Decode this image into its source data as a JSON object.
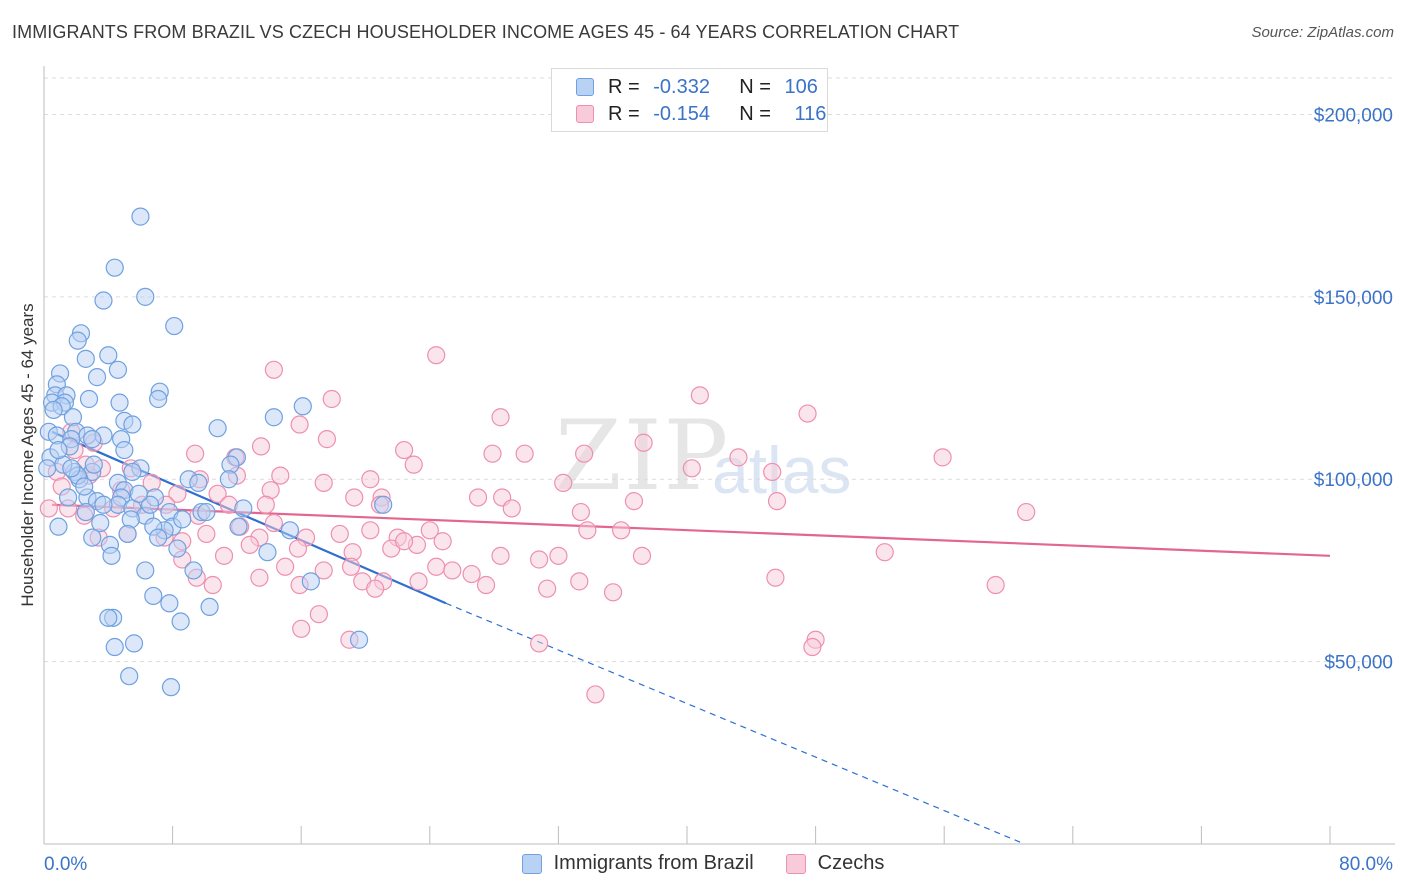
{
  "title": "IMMIGRANTS FROM BRAZIL VS CZECH HOUSEHOLDER INCOME AGES 45 - 64 YEARS CORRELATION CHART",
  "source": "Source: ZipAtlas.com",
  "watermark": {
    "zip": "ZIP",
    "atlas": "atlas"
  },
  "legend": {
    "brazil": {
      "r_label": "R = ",
      "r_value": "-0.332",
      "n_label": "N = ",
      "n_value": "106"
    },
    "czech": {
      "r_label": "R = ",
      "r_value": "-0.154",
      "n_label": "N = ",
      "n_value": "116"
    }
  },
  "bottom_legend": {
    "brazil": "Immigrants from Brazil",
    "czech": "Czechs"
  },
  "colors": {
    "brazil": "#6fa1e0",
    "brazil_fill": "#b9d2f3",
    "brazil_line": "#2f6fd0",
    "czech": "#ee8fb0",
    "czech_fill": "#f8cbda",
    "czech_line": "#e2668f",
    "axis_text": "#3b73c8"
  },
  "chart_data": {
    "type": "scatter",
    "title": "IMMIGRANTS FROM BRAZIL VS CZECH HOUSEHOLDER INCOME AGES 45 - 64 YEARS CORRELATION CHART",
    "xlabel": "",
    "ylabel": "Householder Income Ages 45 - 64 years",
    "xlim": [
      0,
      80
    ],
    "ylim": [
      0,
      210000
    ],
    "x_tick_labels": [
      "0.0%",
      "80.0%"
    ],
    "y_ticks": [
      50000,
      100000,
      150000,
      200000
    ],
    "y_tick_labels": [
      "$50,000",
      "$100,000",
      "$150,000",
      "$200,000"
    ],
    "series": [
      {
        "name": "Immigrants from Brazil",
        "trend": {
          "x0": 0.5,
          "y0": 113000,
          "x1": 25,
          "y1": 66000,
          "dash_x1": 61,
          "dash_y1": 0
        },
        "points": [
          [
            6.0,
            172000
          ],
          [
            4.4,
            158000
          ],
          [
            6.3,
            150000
          ],
          [
            3.7,
            149000
          ],
          [
            8.1,
            142000
          ],
          [
            2.3,
            140000
          ],
          [
            2.1,
            138000
          ],
          [
            4.0,
            134000
          ],
          [
            2.6,
            133000
          ],
          [
            1.0,
            129000
          ],
          [
            4.6,
            130000
          ],
          [
            3.3,
            128000
          ],
          [
            0.8,
            126000
          ],
          [
            7.2,
            124000
          ],
          [
            0.7,
            123000
          ],
          [
            1.4,
            123000
          ],
          [
            0.5,
            121000
          ],
          [
            2.8,
            122000
          ],
          [
            7.1,
            122000
          ],
          [
            4.7,
            121000
          ],
          [
            1.3,
            121000
          ],
          [
            1.1,
            120000
          ],
          [
            0.6,
            119000
          ],
          [
            16.1,
            120000
          ],
          [
            14.3,
            117000
          ],
          [
            1.8,
            117000
          ],
          [
            5.0,
            116000
          ],
          [
            5.5,
            115000
          ],
          [
            0.3,
            113000
          ],
          [
            2.0,
            113000
          ],
          [
            10.8,
            114000
          ],
          [
            0.8,
            112000
          ],
          [
            2.7,
            112000
          ],
          [
            3.7,
            112000
          ],
          [
            4.8,
            111000
          ],
          [
            1.7,
            111000
          ],
          [
            3.0,
            111000
          ],
          [
            1.6,
            109000
          ],
          [
            5.0,
            108000
          ],
          [
            0.4,
            106000
          ],
          [
            12.0,
            106000
          ],
          [
            11.6,
            104000
          ],
          [
            0.2,
            103000
          ],
          [
            6.0,
            103000
          ],
          [
            5.5,
            102000
          ],
          [
            3.0,
            102000
          ],
          [
            1.9,
            102000
          ],
          [
            2.2,
            100000
          ],
          [
            9.0,
            100000
          ],
          [
            11.5,
            100000
          ],
          [
            4.6,
            99000
          ],
          [
            5.0,
            97000
          ],
          [
            4.8,
            95000
          ],
          [
            6.9,
            95000
          ],
          [
            2.7,
            95000
          ],
          [
            1.5,
            95000
          ],
          [
            3.3,
            94000
          ],
          [
            4.6,
            93000
          ],
          [
            21.1,
            93000
          ],
          [
            12.4,
            92000
          ],
          [
            5.5,
            92000
          ],
          [
            2.6,
            91000
          ],
          [
            7.8,
            91000
          ],
          [
            9.8,
            91000
          ],
          [
            6.3,
            90000
          ],
          [
            5.4,
            89000
          ],
          [
            3.5,
            88000
          ],
          [
            0.9,
            87000
          ],
          [
            8.0,
            87000
          ],
          [
            15.3,
            86000
          ],
          [
            7.5,
            86000
          ],
          [
            6.8,
            87000
          ],
          [
            5.2,
            85000
          ],
          [
            3.0,
            84000
          ],
          [
            12.1,
            87000
          ],
          [
            7.1,
            84000
          ],
          [
            4.1,
            82000
          ],
          [
            8.3,
            81000
          ],
          [
            13.9,
            80000
          ],
          [
            4.2,
            79000
          ],
          [
            6.3,
            75000
          ],
          [
            9.3,
            75000
          ],
          [
            16.6,
            72000
          ],
          [
            6.8,
            68000
          ],
          [
            7.8,
            66000
          ],
          [
            10.3,
            65000
          ],
          [
            4.3,
            62000
          ],
          [
            4.0,
            62000
          ],
          [
            8.5,
            61000
          ],
          [
            19.6,
            56000
          ],
          [
            5.6,
            55000
          ],
          [
            4.4,
            54000
          ],
          [
            5.3,
            46000
          ],
          [
            7.9,
            43000
          ],
          [
            3.7,
            93000
          ],
          [
            2.1,
            101000
          ],
          [
            1.2,
            104000
          ],
          [
            9.6,
            99000
          ],
          [
            6.6,
            93000
          ],
          [
            3.1,
            104000
          ],
          [
            1.7,
            103000
          ],
          [
            0.9,
            108000
          ],
          [
            2.5,
            98000
          ],
          [
            5.9,
            96000
          ],
          [
            10.1,
            91000
          ],
          [
            8.6,
            89000
          ]
        ]
      },
      {
        "name": "Czechs",
        "trend": {
          "x0": 0.5,
          "y0": 93000,
          "x1": 80,
          "y1": 79000
        },
        "points": [
          [
            24.4,
            134000
          ],
          [
            14.3,
            130000
          ],
          [
            40.8,
            123000
          ],
          [
            17.9,
            122000
          ],
          [
            28.4,
            117000
          ],
          [
            47.5,
            118000
          ],
          [
            15.9,
            115000
          ],
          [
            17.6,
            111000
          ],
          [
            22.4,
            108000
          ],
          [
            1.9,
            108000
          ],
          [
            9.4,
            107000
          ],
          [
            11.9,
            106000
          ],
          [
            13.5,
            109000
          ],
          [
            37.3,
            110000
          ],
          [
            27.9,
            107000
          ],
          [
            29.9,
            107000
          ],
          [
            33.6,
            107000
          ],
          [
            43.2,
            106000
          ],
          [
            55.9,
            106000
          ],
          [
            23.0,
            104000
          ],
          [
            3.6,
            103000
          ],
          [
            5.4,
            103000
          ],
          [
            40.3,
            103000
          ],
          [
            45.3,
            102000
          ],
          [
            12.0,
            101000
          ],
          [
            14.7,
            101000
          ],
          [
            0.8,
            102000
          ],
          [
            2.8,
            101000
          ],
          [
            9.7,
            100000
          ],
          [
            17.4,
            99000
          ],
          [
            20.3,
            100000
          ],
          [
            32.3,
            99000
          ],
          [
            1.1,
            98000
          ],
          [
            4.8,
            97000
          ],
          [
            14.1,
            97000
          ],
          [
            8.3,
            96000
          ],
          [
            10.8,
            96000
          ],
          [
            19.3,
            95000
          ],
          [
            21.0,
            95000
          ],
          [
            27.0,
            95000
          ],
          [
            28.5,
            95000
          ],
          [
            36.7,
            94000
          ],
          [
            45.6,
            94000
          ],
          [
            6.1,
            93000
          ],
          [
            7.6,
            93000
          ],
          [
            11.5,
            93000
          ],
          [
            13.8,
            93000
          ],
          [
            20.9,
            93000
          ],
          [
            29.1,
            92000
          ],
          [
            4.3,
            92000
          ],
          [
            2.5,
            90000
          ],
          [
            9.6,
            90000
          ],
          [
            33.4,
            91000
          ],
          [
            61.1,
            91000
          ],
          [
            14.3,
            88000
          ],
          [
            12.2,
            87000
          ],
          [
            20.3,
            86000
          ],
          [
            24.0,
            86000
          ],
          [
            33.8,
            86000
          ],
          [
            35.9,
            86000
          ],
          [
            10.1,
            85000
          ],
          [
            13.4,
            84000
          ],
          [
            16.3,
            84000
          ],
          [
            18.4,
            85000
          ],
          [
            22.0,
            84000
          ],
          [
            23.2,
            82000
          ],
          [
            24.8,
            83000
          ],
          [
            3.4,
            84000
          ],
          [
            5.2,
            85000
          ],
          [
            7.5,
            84000
          ],
          [
            8.6,
            83000
          ],
          [
            12.8,
            82000
          ],
          [
            15.8,
            81000
          ],
          [
            19.2,
            80000
          ],
          [
            21.6,
            81000
          ],
          [
            28.4,
            79000
          ],
          [
            30.8,
            78000
          ],
          [
            32.0,
            79000
          ],
          [
            37.2,
            79000
          ],
          [
            52.3,
            80000
          ],
          [
            8.6,
            78000
          ],
          [
            11.2,
            79000
          ],
          [
            15.0,
            76000
          ],
          [
            19.1,
            76000
          ],
          [
            24.4,
            76000
          ],
          [
            25.4,
            75000
          ],
          [
            26.6,
            74000
          ],
          [
            17.4,
            75000
          ],
          [
            13.4,
            73000
          ],
          [
            15.9,
            71000
          ],
          [
            19.8,
            72000
          ],
          [
            21.1,
            72000
          ],
          [
            23.3,
            72000
          ],
          [
            27.5,
            71000
          ],
          [
            33.3,
            72000
          ],
          [
            9.5,
            73000
          ],
          [
            10.5,
            71000
          ],
          [
            20.6,
            70000
          ],
          [
            31.3,
            70000
          ],
          [
            35.4,
            69000
          ],
          [
            45.5,
            73000
          ],
          [
            59.2,
            71000
          ],
          [
            17.1,
            63000
          ],
          [
            16.0,
            59000
          ],
          [
            30.8,
            55000
          ],
          [
            48.0,
            56000
          ],
          [
            34.3,
            41000
          ],
          [
            19.0,
            56000
          ],
          [
            47.8,
            54000
          ],
          [
            1.5,
            92000
          ],
          [
            0.3,
            92000
          ],
          [
            22.4,
            83000
          ],
          [
            3.1,
            110000
          ],
          [
            1.7,
            113000
          ],
          [
            2.6,
            104000
          ],
          [
            6.7,
            99000
          ]
        ]
      }
    ]
  }
}
